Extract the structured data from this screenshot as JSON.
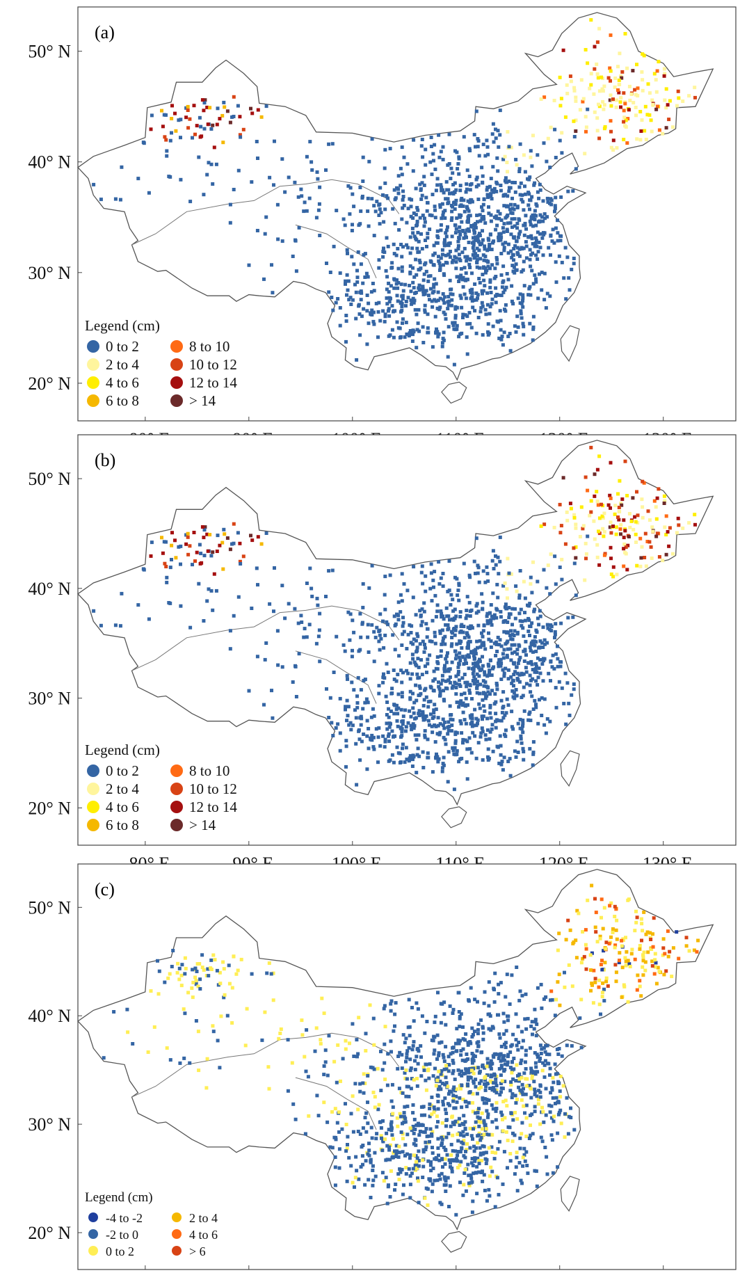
{
  "figure": {
    "y_ticks": [
      "50° N",
      "40° N",
      "30° N",
      "20° N"
    ],
    "x_ticks": [
      "80° E",
      "90° E",
      "100° E",
      "110° E",
      "120° E",
      "130° E"
    ]
  },
  "panels": [
    {
      "label": "(a)",
      "legend_title": "Legend (cm)",
      "legend": [
        {
          "text": "0  to  2",
          "color": "#3465a4"
        },
        {
          "text": "2  to  4",
          "color": "#fff59d"
        },
        {
          "text": "4  to  6",
          "color": "#ffee00"
        },
        {
          "text": "6  to  8",
          "color": "#f5b800"
        },
        {
          "text": "8  to  10",
          "color": "#ff6a14"
        },
        {
          "text": "10  to  12",
          "color": "#d84315"
        },
        {
          "text": "12  to  14",
          "color": "#a50f0f"
        },
        {
          "text": "> 14",
          "color": "#6b2a2a"
        }
      ]
    },
    {
      "label": "(b)",
      "legend_title": "Legend (cm)",
      "legend": [
        {
          "text": "0  to  2",
          "color": "#3465a4"
        },
        {
          "text": "2  to  4",
          "color": "#fff59d"
        },
        {
          "text": "4  to  6",
          "color": "#ffee00"
        },
        {
          "text": "6  to  8",
          "color": "#f5b800"
        },
        {
          "text": "8  to  10",
          "color": "#ff6a14"
        },
        {
          "text": "10  to  12",
          "color": "#d84315"
        },
        {
          "text": "12  to  14",
          "color": "#a50f0f"
        },
        {
          "text": "> 14",
          "color": "#6b2a2a"
        }
      ]
    },
    {
      "label": "(c)",
      "legend_title": "Legend (cm)",
      "legend": [
        {
          "text": "-4  to  -2",
          "color": "#1f3f9e"
        },
        {
          "text": "-2  to  0",
          "color": "#3465a4"
        },
        {
          "text": "0  to  2",
          "color": "#ffee55"
        },
        {
          "text": "2  to  4",
          "color": "#f5b800"
        },
        {
          "text": "4  to  6",
          "color": "#ff6a14"
        },
        {
          "text": "> 6",
          "color": "#d84315"
        }
      ]
    }
  ]
}
